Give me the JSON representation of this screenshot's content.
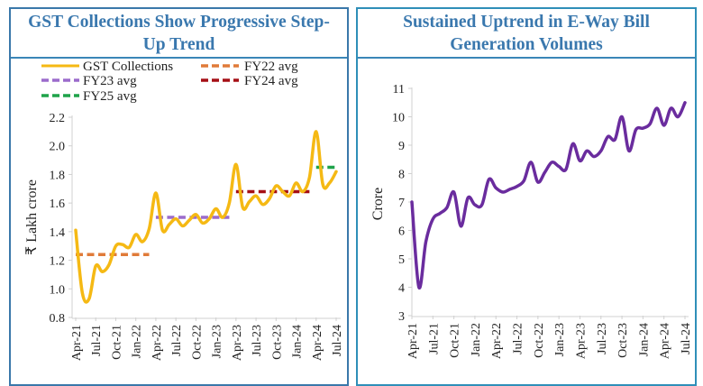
{
  "chart_data": [
    {
      "type": "line",
      "title": "GST Collections Show Progressive Step-Up Trend",
      "title_lines": [
        "GST Collections Show Progressive Step-",
        "Up Trend"
      ],
      "xlabel": "",
      "ylabel": "₹ Lakh crore",
      "ylim": [
        0.8,
        2.2
      ],
      "yticks": [
        "0.8",
        "1.0",
        "1.2",
        "1.4",
        "1.6",
        "1.8",
        "2.0",
        "2.2"
      ],
      "ytick_values": [
        0.8,
        1.0,
        1.2,
        1.4,
        1.6,
        1.8,
        2.0,
        2.2
      ],
      "xtick_labels": [
        "Apr-21",
        "Jul-21",
        "Oct-21",
        "Jan-22",
        "Apr-22",
        "Jul-22",
        "Oct-22",
        "Jan-23",
        "Apr-23",
        "Jul-23",
        "Oct-23",
        "Jan-24",
        "Apr-24",
        "Jul-24"
      ],
      "grid": false,
      "legend_position": "top",
      "legend": [
        "GST Collections",
        "FY22 avg",
        "FY23 avg",
        "FY24 avg",
        "FY25 avg"
      ],
      "x": [
        "Apr-21",
        "May-21",
        "Jun-21",
        "Jul-21",
        "Aug-21",
        "Sep-21",
        "Oct-21",
        "Nov-21",
        "Dec-21",
        "Jan-22",
        "Feb-22",
        "Mar-22",
        "Apr-22",
        "May-22",
        "Jun-22",
        "Jul-22",
        "Aug-22",
        "Sep-22",
        "Oct-22",
        "Nov-22",
        "Dec-22",
        "Jan-23",
        "Feb-23",
        "Mar-23",
        "Apr-23",
        "May-23",
        "Jun-23",
        "Jul-23",
        "Aug-23",
        "Sep-23",
        "Oct-23",
        "Nov-23",
        "Dec-23",
        "Jan-24",
        "Feb-24",
        "Mar-24",
        "Apr-24",
        "May-24",
        "Jun-24",
        "Jul-24"
      ],
      "series": [
        {
          "name": "GST Collections",
          "color": "#f5b914",
          "style": "solid",
          "values": [
            1.41,
            0.97,
            0.93,
            1.16,
            1.12,
            1.17,
            1.3,
            1.31,
            1.29,
            1.38,
            1.33,
            1.42,
            1.67,
            1.41,
            1.45,
            1.49,
            1.44,
            1.48,
            1.52,
            1.46,
            1.49,
            1.56,
            1.5,
            1.6,
            1.87,
            1.57,
            1.61,
            1.65,
            1.59,
            1.63,
            1.72,
            1.68,
            1.65,
            1.74,
            1.68,
            1.78,
            2.1,
            1.73,
            1.74,
            1.82
          ]
        },
        {
          "name": "FY22 avg",
          "color": "#e07b39",
          "style": "dashed",
          "value": 1.24,
          "range": [
            "Apr-21",
            "Mar-22"
          ]
        },
        {
          "name": "FY23 avg",
          "color": "#9b6bcc",
          "style": "dashed",
          "value": 1.5,
          "range": [
            "Apr-22",
            "Mar-23"
          ]
        },
        {
          "name": "FY24 avg",
          "color": "#a50f15",
          "style": "dashed",
          "value": 1.68,
          "range": [
            "Apr-23",
            "Mar-24"
          ]
        },
        {
          "name": "FY25 avg",
          "color": "#1fa34a",
          "style": "dashed",
          "value": 1.85,
          "range": [
            "Apr-24",
            "Jul-24"
          ]
        }
      ]
    },
    {
      "type": "line",
      "title": "Sustained Uptrend in E-Way Bill Generation Volumes",
      "title_lines": [
        "Sustained Uptrend in E-Way Bill",
        "Generation Volumes"
      ],
      "xlabel": "",
      "ylabel": "Crore",
      "ylim": [
        3,
        11
      ],
      "yticks": [
        "3",
        "4",
        "5",
        "6",
        "7",
        "8",
        "9",
        "10",
        "11"
      ],
      "ytick_values": [
        3,
        4,
        5,
        6,
        7,
        8,
        9,
        10,
        11
      ],
      "xtick_labels": [
        "Apr-21",
        "Jul-21",
        "Oct-21",
        "Jan-22",
        "Apr-22",
        "Jul-22",
        "Oct-22",
        "Jan-23",
        "Apr-23",
        "Jul-23",
        "Oct-23",
        "Jan-24",
        "Apr-24",
        "Jul-24"
      ],
      "grid": false,
      "legend_position": "none",
      "x": [
        "Apr-21",
        "May-21",
        "Jun-21",
        "Jul-21",
        "Aug-21",
        "Sep-21",
        "Oct-21",
        "Nov-21",
        "Dec-21",
        "Jan-22",
        "Feb-22",
        "Mar-22",
        "Apr-22",
        "May-22",
        "Jun-22",
        "Jul-22",
        "Aug-22",
        "Sep-22",
        "Oct-22",
        "Nov-22",
        "Dec-22",
        "Jan-23",
        "Feb-23",
        "Mar-23",
        "Apr-23",
        "May-23",
        "Jun-23",
        "Jul-23",
        "Aug-23",
        "Sep-23",
        "Oct-23",
        "Nov-23",
        "Dec-23",
        "Jan-24",
        "Feb-24",
        "Mar-24",
        "Apr-24",
        "May-24",
        "Jun-24",
        "Jul-24"
      ],
      "series": [
        {
          "name": "E-Way Bills",
          "color": "#6a2c9e",
          "style": "solid",
          "values": [
            7.0,
            4.0,
            5.6,
            6.4,
            6.6,
            6.8,
            7.35,
            6.15,
            7.15,
            6.9,
            6.9,
            7.8,
            7.5,
            7.35,
            7.45,
            7.55,
            7.75,
            8.4,
            7.7,
            8.05,
            8.4,
            8.25,
            8.15,
            9.05,
            8.45,
            8.8,
            8.6,
            8.8,
            9.3,
            9.2,
            10.0,
            8.8,
            9.55,
            9.6,
            9.75,
            10.3,
            9.7,
            10.3,
            10.0,
            10.5
          ]
        }
      ]
    }
  ]
}
